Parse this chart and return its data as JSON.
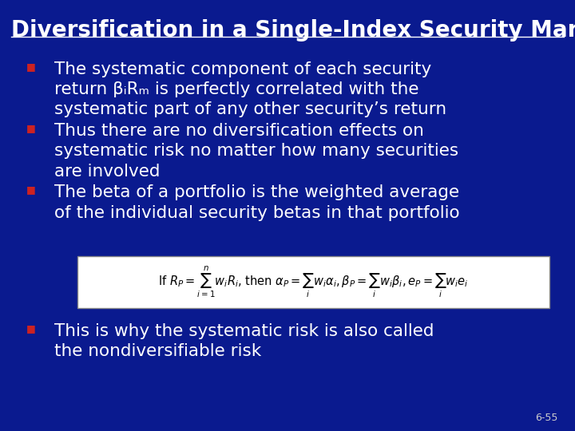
{
  "title": "Diversification in a Single-Index Security Market",
  "background_color": "#0a1a8f",
  "title_color": "#ffffff",
  "title_fontsize": 20,
  "bullet_color": "#ffffff",
  "bullet_marker_color": "#cc2222",
  "bullet_fontsize": 15.5,
  "slide_number": "6-55",
  "slide_number_color": "#cccccc",
  "formula_box_color": "#ffffff",
  "formula_box_edge": "#aaaaaa",
  "bullets": [
    {
      "lines": [
        "The systematic component of each security",
        "return βᵢRₘ is perfectly correlated with the",
        "systematic part of any other security’s return"
      ]
    },
    {
      "lines": [
        "Thus there are no diversification effects on",
        "systematic risk no matter how many securities",
        "are involved"
      ]
    },
    {
      "lines": [
        "The beta of a portfolio is the weighted average",
        "of the individual security betas in that portfolio"
      ]
    }
  ],
  "last_bullet": {
    "lines": [
      "This is why the systematic risk is also called",
      "the nondiversifiable risk"
    ]
  }
}
